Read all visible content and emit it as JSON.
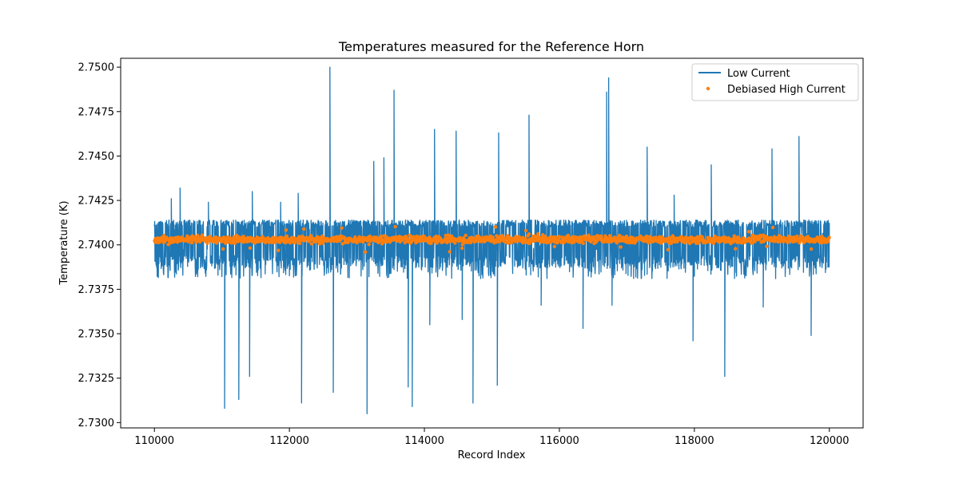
{
  "chart_data": {
    "type": "line",
    "title": "Temperatures measured for the Reference Horn",
    "xlabel": "Record Index",
    "ylabel": "Temperature (K)",
    "xlim": [
      109500,
      120500
    ],
    "ylim": [
      2.7297,
      2.7505
    ],
    "x_ticks": [
      110000,
      112000,
      114000,
      116000,
      118000,
      120000
    ],
    "x_tick_labels": [
      "110000",
      "112000",
      "114000",
      "116000",
      "118000",
      "120000"
    ],
    "y_ticks": [
      2.73,
      2.7325,
      2.735,
      2.7375,
      2.74,
      2.7425,
      2.745,
      2.7475,
      2.75
    ],
    "y_tick_labels": [
      "2.7300",
      "2.7325",
      "2.7350",
      "2.7375",
      "2.7400",
      "2.7425",
      "2.7450",
      "2.7475",
      "2.7500"
    ],
    "legend_position": "top-right",
    "x_range": [
      110000,
      120000
    ],
    "series": [
      {
        "name": "Low Current",
        "style": "line",
        "color": "#1f77b4",
        "baseline": 2.7403,
        "band_low": 2.7387,
        "band_high": 2.7414,
        "spikes": [
          {
            "x": 110250,
            "y": 2.7426
          },
          {
            "x": 110380,
            "y": 2.7432
          },
          {
            "x": 110800,
            "y": 2.7424
          },
          {
            "x": 111450,
            "y": 2.743
          },
          {
            "x": 111870,
            "y": 2.7424
          },
          {
            "x": 112130,
            "y": 2.7429
          },
          {
            "x": 112600,
            "y": 2.75
          },
          {
            "x": 113250,
            "y": 2.7447
          },
          {
            "x": 113400,
            "y": 2.7449
          },
          {
            "x": 113550,
            "y": 2.7487
          },
          {
            "x": 114150,
            "y": 2.7465
          },
          {
            "x": 114470,
            "y": 2.7464
          },
          {
            "x": 115100,
            "y": 2.7463
          },
          {
            "x": 115550,
            "y": 2.7473
          },
          {
            "x": 116700,
            "y": 2.7486
          },
          {
            "x": 116730,
            "y": 2.7494
          },
          {
            "x": 117300,
            "y": 2.7455
          },
          {
            "x": 117700,
            "y": 2.7428
          },
          {
            "x": 118250,
            "y": 2.7445
          },
          {
            "x": 119150,
            "y": 2.7454
          },
          {
            "x": 119550,
            "y": 2.7461
          },
          {
            "x": 111040,
            "y": 2.7308
          },
          {
            "x": 111250,
            "y": 2.7313
          },
          {
            "x": 111410,
            "y": 2.7326
          },
          {
            "x": 112180,
            "y": 2.7311
          },
          {
            "x": 112650,
            "y": 2.7317
          },
          {
            "x": 113150,
            "y": 2.7305
          },
          {
            "x": 113760,
            "y": 2.732
          },
          {
            "x": 113820,
            "y": 2.7309
          },
          {
            "x": 114080,
            "y": 2.7355
          },
          {
            "x": 114560,
            "y": 2.7358
          },
          {
            "x": 114720,
            "y": 2.7311
          },
          {
            "x": 115080,
            "y": 2.7321
          },
          {
            "x": 115730,
            "y": 2.7366
          },
          {
            "x": 116350,
            "y": 2.7353
          },
          {
            "x": 116780,
            "y": 2.7366
          },
          {
            "x": 117980,
            "y": 2.7346
          },
          {
            "x": 118450,
            "y": 2.7326
          },
          {
            "x": 119020,
            "y": 2.7365
          },
          {
            "x": 119730,
            "y": 2.7349
          }
        ]
      },
      {
        "name": "Debiased High Current",
        "style": "scatter",
        "color": "#ff7f0e",
        "baseline": 2.7403,
        "spread": 0.0003
      }
    ]
  }
}
